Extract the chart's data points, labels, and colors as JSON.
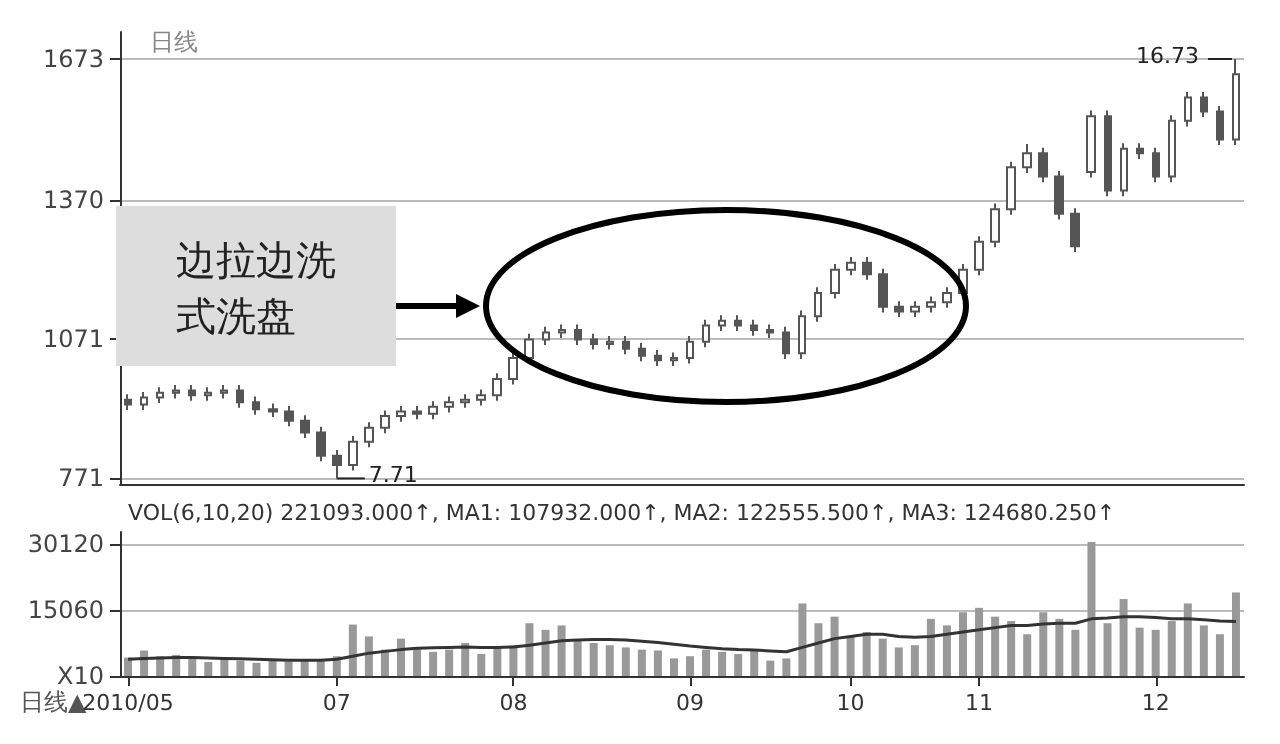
{
  "chart_data": [
    {
      "type": "candlestick",
      "subtitle": "日线",
      "categories": [
        "2010/05",
        null,
        null,
        null,
        null,
        null,
        null,
        null,
        null,
        null,
        null,
        null,
        null,
        "07",
        null,
        null,
        null,
        null,
        null,
        null,
        null,
        null,
        null,
        null,
        "08",
        null,
        null,
        null,
        null,
        null,
        null,
        null,
        null,
        null,
        null,
        "09",
        null,
        null,
        null,
        null,
        null,
        null,
        null,
        null,
        null,
        "10",
        null,
        null,
        null,
        null,
        null,
        null,
        null,
        "11",
        null,
        null,
        null,
        null,
        null,
        null,
        null,
        null,
        null,
        null,
        "12",
        null,
        null,
        null,
        null,
        null
      ],
      "series": [
        {
          "color": "#555555",
          "ohlc": [
            [
              940,
              952,
              918,
              930
            ],
            [
              930,
              957,
              918,
              945
            ],
            [
              945,
              967,
              933,
              955
            ],
            [
              955,
              972,
              943,
              960
            ],
            [
              960,
              972,
              938,
              950
            ],
            [
              950,
              967,
              938,
              955
            ],
            [
              955,
              972,
              943,
              960
            ],
            [
              960,
              972,
              923,
              935
            ],
            [
              935,
              947,
              908,
              920
            ],
            [
              920,
              932,
              903,
              915
            ],
            [
              915,
              927,
              883,
              895
            ],
            [
              895,
              907,
              858,
              870
            ],
            [
              870,
              882,
              808,
              820
            ],
            [
              820,
              832,
              771,
              800
            ],
            [
              800,
              862,
              788,
              850
            ],
            [
              850,
              892,
              838,
              880
            ],
            [
              880,
              917,
              868,
              905
            ],
            [
              905,
              927,
              893,
              915
            ],
            [
              915,
              927,
              898,
              910
            ],
            [
              910,
              937,
              898,
              925
            ],
            [
              925,
              947,
              913,
              935
            ],
            [
              935,
              952,
              923,
              940
            ],
            [
              940,
              962,
              928,
              950
            ],
            [
              950,
              997,
              938,
              985
            ],
            [
              985,
              1042,
              973,
              1030
            ],
            [
              1030,
              1082,
              1018,
              1070
            ],
            [
              1070,
              1097,
              1058,
              1085
            ],
            [
              1085,
              1102,
              1073,
              1090
            ],
            [
              1090,
              1102,
              1058,
              1070
            ],
            [
              1070,
              1082,
              1048,
              1060
            ],
            [
              1060,
              1077,
              1048,
              1065
            ],
            [
              1065,
              1077,
              1038,
              1050
            ],
            [
              1050,
              1062,
              1023,
              1035
            ],
            [
              1035,
              1047,
              1013,
              1025
            ],
            [
              1025,
              1042,
              1013,
              1030
            ],
            [
              1030,
              1077,
              1018,
              1065
            ],
            [
              1065,
              1112,
              1053,
              1100
            ],
            [
              1100,
              1122,
              1088,
              1110
            ],
            [
              1110,
              1122,
              1088,
              1100
            ],
            [
              1100,
              1112,
              1078,
              1090
            ],
            [
              1090,
              1102,
              1073,
              1085
            ],
            [
              1085,
              1097,
              1028,
              1040
            ],
            [
              1040,
              1132,
              1028,
              1120
            ],
            [
              1120,
              1182,
              1108,
              1170
            ],
            [
              1170,
              1232,
              1158,
              1220
            ],
            [
              1220,
              1247,
              1208,
              1235
            ],
            [
              1235,
              1247,
              1198,
              1210
            ],
            [
              1210,
              1222,
              1128,
              1140
            ],
            [
              1140,
              1152,
              1118,
              1130
            ],
            [
              1130,
              1152,
              1118,
              1140
            ],
            [
              1140,
              1162,
              1128,
              1150
            ],
            [
              1150,
              1182,
              1138,
              1170
            ],
            [
              1170,
              1232,
              1158,
              1220
            ],
            [
              1220,
              1292,
              1208,
              1280
            ],
            [
              1280,
              1362,
              1268,
              1350
            ],
            [
              1350,
              1452,
              1338,
              1440
            ],
            [
              1440,
              1490,
              1428,
              1470
            ],
            [
              1470,
              1482,
              1408,
              1420
            ],
            [
              1420,
              1432,
              1328,
              1340
            ],
            [
              1340,
              1352,
              1258,
              1270
            ],
            [
              1430,
              1562,
              1418,
              1550
            ],
            [
              1550,
              1562,
              1378,
              1390
            ],
            [
              1390,
              1492,
              1378,
              1480
            ],
            [
              1480,
              1492,
              1458,
              1470
            ],
            [
              1470,
              1482,
              1408,
              1420
            ],
            [
              1420,
              1552,
              1408,
              1540
            ],
            [
              1540,
              1602,
              1528,
              1590
            ],
            [
              1590,
              1602,
              1548,
              1560
            ],
            [
              1560,
              1572,
              1488,
              1500
            ],
            [
              1500,
              1673,
              1488,
              1640
            ]
          ]
        }
      ],
      "ylim": [
        759,
        1731
      ],
      "yticks": [
        771,
        1071,
        1370,
        1673
      ],
      "grid": "y",
      "tick_labels": "y",
      "annotations": [
        "边拉边洗式洗盘",
        "7.71",
        "16.73"
      ]
    },
    {
      "type": "bar",
      "categories": [
        "2010/05",
        null,
        null,
        null,
        null,
        null,
        null,
        null,
        null,
        null,
        null,
        null,
        null,
        "07",
        null,
        null,
        null,
        null,
        null,
        null,
        null,
        null,
        null,
        null,
        "08",
        null,
        null,
        null,
        null,
        null,
        null,
        null,
        null,
        null,
        null,
        "09",
        null,
        null,
        null,
        null,
        null,
        null,
        null,
        null,
        null,
        "10",
        null,
        null,
        null,
        null,
        null,
        null,
        null,
        "11",
        null,
        null,
        null,
        null,
        null,
        null,
        null,
        null,
        null,
        null,
        "12",
        null,
        null,
        null,
        null,
        null
      ],
      "series": [
        {
          "type": "bar",
          "color": "#999999",
          "values": [
            4200,
            5800,
            4500,
            4800,
            4000,
            3200,
            3800,
            3500,
            3000,
            3400,
            3300,
            3600,
            3800,
            4500,
            11700,
            9000,
            6000,
            8500,
            6500,
            5500,
            6000,
            7500,
            5000,
            6500,
            7000,
            12000,
            10500,
            11500,
            8000,
            7500,
            7000,
            6500,
            6000,
            5800,
            4000,
            4500,
            6000,
            5500,
            5000,
            6000,
            3500,
            4000,
            16500,
            12000,
            13500,
            9000,
            10000,
            8500,
            6500,
            7000,
            13000,
            11500,
            14500,
            15500,
            13500,
            12500,
            9500,
            14500,
            13000,
            10500,
            30500,
            12000,
            17500,
            11000,
            10500,
            12500,
            16500,
            11500,
            9500,
            19000
          ]
        },
        {
          "type": "line",
          "color": "#333333",
          "values": [
            3800,
            4000,
            4100,
            4200,
            4200,
            4100,
            4000,
            3900,
            3800,
            3700,
            3600,
            3600,
            3600,
            3800,
            4500,
            5200,
            5600,
            6000,
            6300,
            6400,
            6500,
            6600,
            6500,
            6500,
            6600,
            7000,
            7500,
            8000,
            8200,
            8300,
            8300,
            8200,
            7900,
            7600,
            7200,
            6800,
            6500,
            6200,
            6000,
            5900,
            5700,
            5500,
            6500,
            7500,
            8500,
            9000,
            9500,
            9500,
            9000,
            8800,
            9000,
            9500,
            10000,
            10500,
            11000,
            11500,
            11500,
            11800,
            12000,
            12000,
            13000,
            13200,
            13500,
            13500,
            13300,
            13000,
            13000,
            12800,
            12500,
            12400
          ]
        }
      ],
      "ylim": [
        0,
        32750
      ],
      "yticks": [
        {
          "value": 0,
          "label": "X10"
        },
        15060,
        30120
      ],
      "grid": "y",
      "annotations": [
        "VOL(6,10,20) 221093.000↑, MA1: 107932.000↑, MA2: 122555.500↑, MA3: 124680.250↑",
        "日线▲"
      ]
    }
  ]
}
